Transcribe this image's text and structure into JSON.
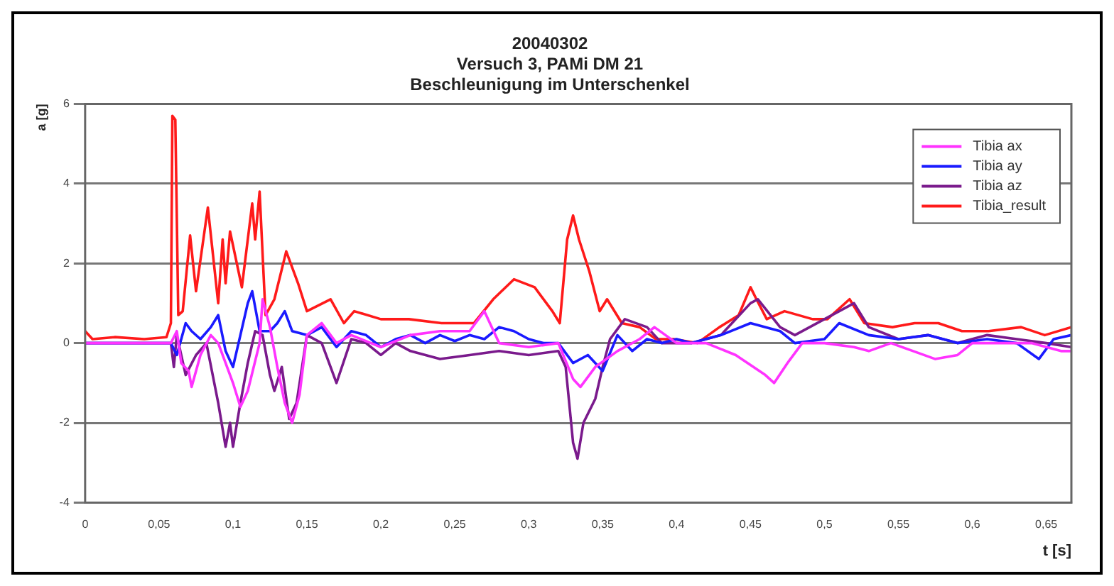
{
  "chart_data": {
    "type": "line",
    "title": "20040302",
    "subtitle": "Versuch 3, PAMi DM 21\nBeschleunigung im Unterschenkel",
    "xlabel": "t [s]",
    "ylabel": "a [g]",
    "xlim": [
      0,
      0.667
    ],
    "ylim": [
      -4,
      6
    ],
    "xticks": [
      0,
      {
        "value": 0.05,
        "label": "0,05"
      },
      {
        "value": 0.1,
        "label": "0,1"
      },
      {
        "value": 0.15,
        "label": "0,15"
      },
      {
        "value": 0.2,
        "label": "0,2"
      },
      {
        "value": 0.25,
        "label": "0,25"
      },
      {
        "value": 0.3,
        "label": "0,3"
      },
      {
        "value": 0.35,
        "label": "0,35"
      },
      {
        "value": 0.4,
        "label": "0,4"
      },
      {
        "value": 0.45,
        "label": "0,45"
      },
      {
        "value": 0.5,
        "label": "0,5"
      },
      {
        "value": 0.55,
        "label": "0,55"
      },
      {
        "value": 0.6,
        "label": "0,6"
      },
      {
        "value": 0.65,
        "label": "0,65"
      }
    ],
    "yticks": [
      -4,
      -2,
      0,
      2,
      4,
      6
    ],
    "grid": "y",
    "legend": "top right",
    "marker": "none",
    "line_style": "solid",
    "series": [
      {
        "name": "Tibia ax",
        "color": "#ff33ff",
        "x": [
          0,
          0.058,
          0.062,
          0.065,
          0.07,
          0.072,
          0.078,
          0.085,
          0.09,
          0.1,
          0.105,
          0.11,
          0.118,
          0.12,
          0.125,
          0.13,
          0.135,
          0.14,
          0.145,
          0.15,
          0.16,
          0.17,
          0.18,
          0.2,
          0.22,
          0.24,
          0.26,
          0.27,
          0.28,
          0.3,
          0.32,
          0.33,
          0.335,
          0.345,
          0.36,
          0.375,
          0.385,
          0.4,
          0.42,
          0.44,
          0.46,
          0.466,
          0.475,
          0.485,
          0.5,
          0.52,
          0.53,
          0.545,
          0.56,
          0.575,
          0.59,
          0.6,
          0.62,
          0.64,
          0.66,
          0.667
        ],
        "values": [
          0,
          0,
          0.3,
          -0.5,
          -0.7,
          -1.1,
          -0.3,
          0.2,
          0,
          -1,
          -1.6,
          -1.2,
          0,
          1.1,
          0.4,
          -0.6,
          -1.5,
          -2,
          -1.3,
          0.2,
          0.5,
          0,
          0.2,
          -0.1,
          0.2,
          0.3,
          0.3,
          0.8,
          0,
          -0.1,
          0,
          -0.9,
          -1.1,
          -0.6,
          -0.2,
          0.1,
          0.4,
          0,
          0,
          -0.3,
          -0.8,
          -1,
          -0.5,
          0,
          0,
          -0.1,
          -0.2,
          0,
          -0.2,
          -0.4,
          -0.3,
          0,
          0,
          0,
          -0.2,
          -0.2
        ]
      },
      {
        "name": "Tibia ay",
        "color": "#1a1aff",
        "x": [
          0,
          0.058,
          0.062,
          0.068,
          0.072,
          0.078,
          0.085,
          0.09,
          0.095,
          0.1,
          0.105,
          0.11,
          0.113,
          0.118,
          0.125,
          0.13,
          0.135,
          0.14,
          0.15,
          0.16,
          0.17,
          0.18,
          0.19,
          0.2,
          0.21,
          0.22,
          0.23,
          0.24,
          0.25,
          0.26,
          0.27,
          0.28,
          0.29,
          0.3,
          0.31,
          0.32,
          0.33,
          0.34,
          0.35,
          0.36,
          0.37,
          0.38,
          0.39,
          0.4,
          0.41,
          0.43,
          0.45,
          0.47,
          0.48,
          0.5,
          0.51,
          0.53,
          0.55,
          0.57,
          0.59,
          0.61,
          0.63,
          0.645,
          0.655,
          0.667
        ],
        "values": [
          0,
          0,
          -0.3,
          0.5,
          0.3,
          0.1,
          0.4,
          0.7,
          -0.2,
          -0.6,
          0.2,
          1,
          1.3,
          0.3,
          0.3,
          0.5,
          0.8,
          0.3,
          0.2,
          0.4,
          -0.1,
          0.3,
          0.2,
          -0.1,
          0.1,
          0.2,
          0,
          0.2,
          0.05,
          0.2,
          0.1,
          0.4,
          0.3,
          0.1,
          0,
          0,
          -0.5,
          -0.3,
          -0.7,
          0.2,
          -0.2,
          0.1,
          0,
          0.1,
          0,
          0.2,
          0.5,
          0.3,
          0,
          0.1,
          0.5,
          0.2,
          0.1,
          0.2,
          0,
          0.1,
          0,
          -0.4,
          0.1,
          0.2
        ]
      },
      {
        "name": "Tibia az",
        "color": "#7a1a8c",
        "x": [
          0,
          0.058,
          0.06,
          0.062,
          0.068,
          0.075,
          0.082,
          0.09,
          0.095,
          0.098,
          0.1,
          0.105,
          0.11,
          0.115,
          0.12,
          0.125,
          0.128,
          0.133,
          0.138,
          0.143,
          0.15,
          0.16,
          0.17,
          0.18,
          0.19,
          0.2,
          0.21,
          0.22,
          0.24,
          0.26,
          0.28,
          0.3,
          0.32,
          0.325,
          0.33,
          0.333,
          0.337,
          0.345,
          0.35,
          0.355,
          0.365,
          0.38,
          0.39,
          0.4,
          0.41,
          0.43,
          0.45,
          0.455,
          0.47,
          0.48,
          0.5,
          0.52,
          0.53,
          0.55,
          0.57,
          0.59,
          0.61,
          0.63,
          0.65,
          0.667
        ],
        "values": [
          0,
          0,
          -0.6,
          0.2,
          -0.8,
          -0.3,
          0,
          -1.5,
          -2.6,
          -2,
          -2.6,
          -1.5,
          -0.5,
          0.3,
          0.2,
          -0.8,
          -1.2,
          -0.6,
          -1.9,
          -1.5,
          0.2,
          0,
          -1,
          0.1,
          0,
          -0.3,
          0,
          -0.2,
          -0.4,
          -0.3,
          -0.2,
          -0.3,
          -0.2,
          -0.6,
          -2.5,
          -2.9,
          -2,
          -1.4,
          -0.6,
          0.1,
          0.6,
          0.4,
          0,
          0,
          0,
          0.2,
          1,
          1.1,
          0.4,
          0.2,
          0.6,
          1,
          0.4,
          0.1,
          0.2,
          0,
          0.2,
          0.1,
          0,
          -0.1
        ]
      },
      {
        "name": "Tibia_result",
        "color": "#ff1a1a",
        "x": [
          0,
          0.005,
          0.02,
          0.04,
          0.055,
          0.058,
          0.059,
          0.061,
          0.063,
          0.066,
          0.071,
          0.075,
          0.083,
          0.09,
          0.093,
          0.095,
          0.098,
          0.106,
          0.113,
          0.115,
          0.118,
          0.122,
          0.128,
          0.136,
          0.144,
          0.15,
          0.166,
          0.175,
          0.182,
          0.2,
          0.219,
          0.241,
          0.263,
          0.276,
          0.29,
          0.304,
          0.316,
          0.321,
          0.326,
          0.33,
          0.334,
          0.341,
          0.348,
          0.353,
          0.363,
          0.375,
          0.386,
          0.398,
          0.414,
          0.429,
          0.442,
          0.45,
          0.454,
          0.461,
          0.473,
          0.492,
          0.502,
          0.517,
          0.527,
          0.546,
          0.561,
          0.577,
          0.593,
          0.611,
          0.633,
          0.649,
          0.667
        ],
        "values": [
          0.3,
          0.1,
          0.15,
          0.1,
          0.15,
          0.5,
          5.7,
          5.6,
          0.7,
          0.8,
          2.7,
          1.3,
          3.4,
          1,
          2.6,
          1.5,
          2.8,
          1.4,
          3.5,
          2.6,
          3.8,
          0.7,
          1.1,
          2.3,
          1.5,
          0.8,
          1.1,
          0.5,
          0.8,
          0.6,
          0.6,
          0.5,
          0.5,
          1.1,
          1.6,
          1.4,
          0.8,
          0.5,
          2.6,
          3.2,
          2.6,
          1.8,
          0.8,
          1.1,
          0.5,
          0.4,
          0.1,
          0.1,
          0,
          0.4,
          0.7,
          1.4,
          1.1,
          0.6,
          0.8,
          0.6,
          0.6,
          1.1,
          0.5,
          0.4,
          0.5,
          0.5,
          0.3,
          0.3,
          0.4,
          0.2,
          0.4
        ]
      }
    ]
  }
}
